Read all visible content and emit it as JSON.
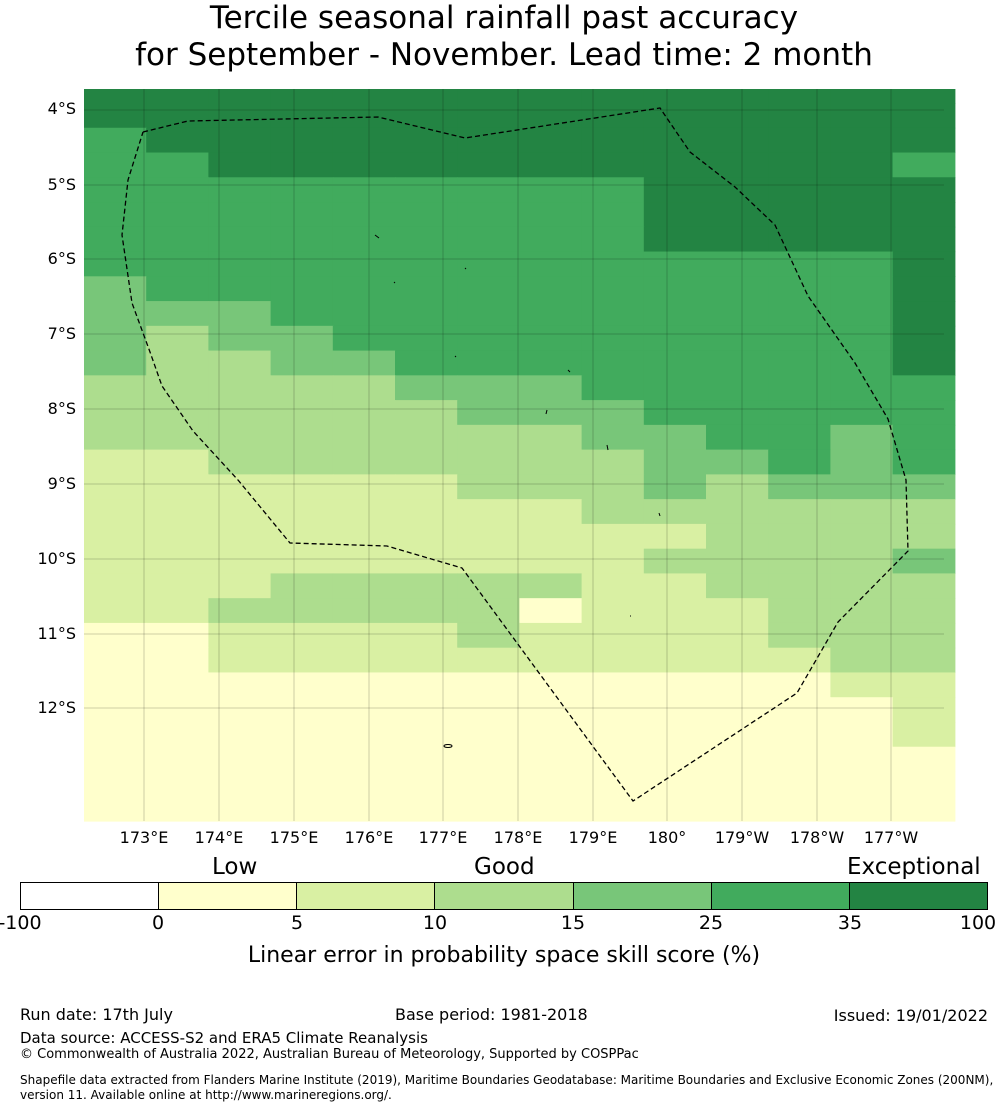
{
  "title": {
    "line1": "Tercile seasonal rainfall past accuracy",
    "line2": "for September - November. Lead time: 2 month"
  },
  "map": {
    "lat_labels": [
      "4°S",
      "5°S",
      "6°S",
      "7°S",
      "8°S",
      "9°S",
      "10°S",
      "11°S",
      "12°S"
    ],
    "lon_labels": [
      "173°E",
      "174°E",
      "175°E",
      "176°E",
      "177°E",
      "178°E",
      "179°E",
      "180°",
      "179°W",
      "178°W",
      "177°W"
    ],
    "boundary_style": "dashed black line (EEZ)",
    "grid": [
      "66666666666666",
      "66666666666666",
      "56666666666666",
      "55666666666665",
      "55555555566666",
      "55555555566666",
      "55555555566666",
      "55555555555556",
      "45555555555556",
      "44455555555556",
      "43445555555556",
      "43344555555556",
      "33333444555555",
      "33333344455555",
      "33333333445545",
      "22333333344545",
      "22222233343444",
      "22222222333333",
      "22222222223333",
      "22222222233334",
      "22233333223333",
      "22333331222333",
      "11222232222333",
      "11222222222233",
      "11111111111122",
      "11111111111112",
      "11111111111112",
      "11111111111111",
      "11111111111111",
      "11111111111111"
    ]
  },
  "legend": {
    "categories": [
      "Low",
      "Good",
      "Exceptional"
    ],
    "ticks": [
      "-100",
      "0",
      "5",
      "10",
      "15",
      "25",
      "35",
      "100"
    ],
    "colors": [
      "#ffffff",
      "#ffffcc",
      "#d9f0a3",
      "#addd8e",
      "#78c679",
      "#41ab5d",
      "#238443"
    ],
    "label": "Linear error in probability space skill score (%)"
  },
  "footer": {
    "run_date": "Run date: 17th July",
    "base_period": "Base period: 1981-2018",
    "issued": "Issued: 19/01/2022",
    "data_source": "Data source: ACCESS-S2 and ERA5 Climate Reanalysis",
    "copyright": "© Commonwealth of Australia 2022, Australian Bureau of Meteorology, Supported by COSPPac",
    "shapefile_1": "Shapefile data extracted from Flanders Marine Institute (2019), Maritime Boundaries Geodatabase: Maritime Boundaries and Exclusive Economic Zones (200NM),",
    "shapefile_2": "version 11. Available online at http://www.marineregions.org/."
  }
}
